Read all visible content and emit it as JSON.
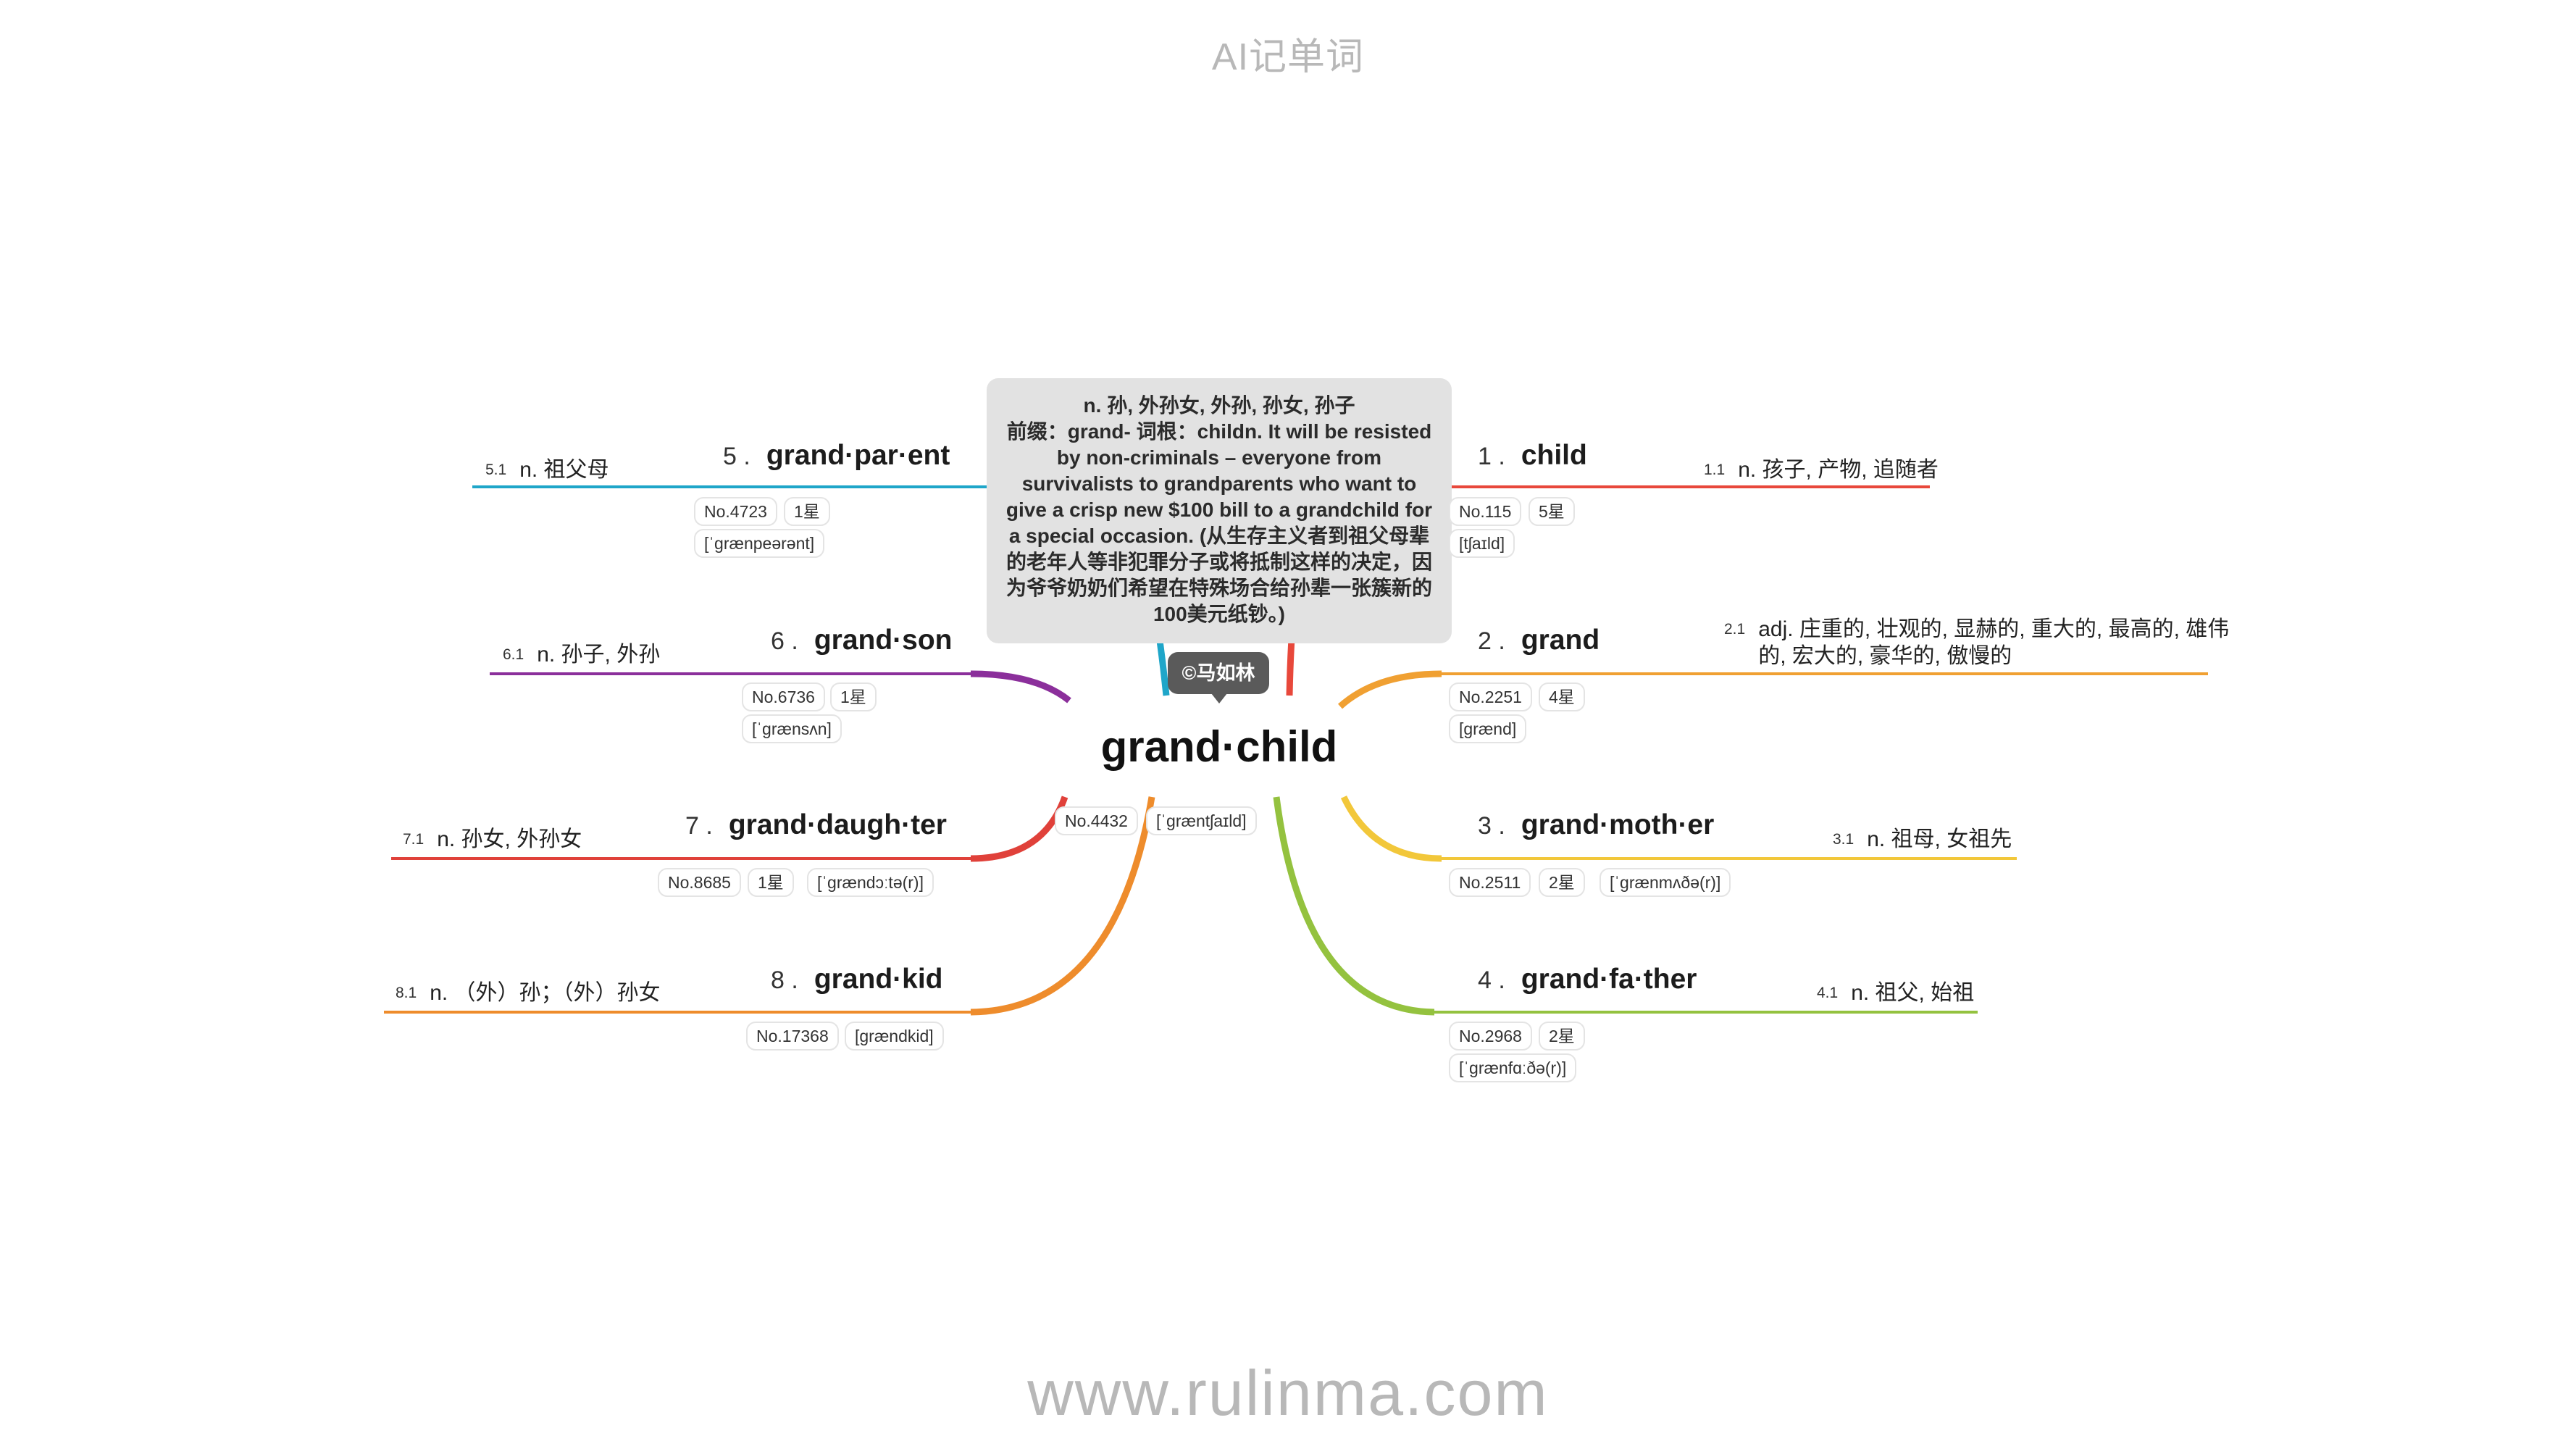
{
  "header": {
    "title": "AI记单词"
  },
  "footer": {
    "url": "www.rulinma.com"
  },
  "center": {
    "word": "grand·child",
    "rank": "No.4432",
    "phonetic": "[ˈɡræntʃaɪld]",
    "copyright": "©马如林",
    "note": "n. 孙, 外孙女, 外孙, 孙女, 孙子\n前缀：grand- 词根：childn. It will be resisted by non-criminals – everyone from survivalists to grandparents who want to give a crisp new $100 bill to a grandchild for a special occasion. (从生存主义者到祖父母辈的老年人等非犯罪分子或将抵制这样的决定，因为爷爷奶奶们希望在特殊场合给孙辈一张簇新的100美元纸钞。)"
  },
  "branches": [
    {
      "num": "1 .",
      "word": "child",
      "rank": "No.115",
      "stars": "5星",
      "phonetic": "[tʃaɪld]",
      "sub": "1.1",
      "meaning": "n. 孩子, 产物, 追随者",
      "color": "#e8483b"
    },
    {
      "num": "2 .",
      "word": "grand",
      "rank": "No.2251",
      "stars": "4星",
      "phonetic": "[ɡrænd]",
      "sub": "2.1",
      "meaning_line1": "adj. 庄重的, 壮观的, 显赫的, 重大的, 最高的, 雄伟",
      "meaning_line2": "的, 宏大的, 豪华的, 傲慢的",
      "color": "#f0a032"
    },
    {
      "num": "3 .",
      "word": "grand·moth·er",
      "rank": "No.2511",
      "stars": "2星",
      "phonetic": "[ˈɡrænmʌðə(r)]",
      "sub": "3.1",
      "meaning": "n. 祖母, 女祖先",
      "color": "#f2c73a"
    },
    {
      "num": "4 .",
      "word": "grand·fa·ther",
      "rank": "No.2968",
      "stars": "2星",
      "phonetic": "[ˈɡrænfɑːðə(r)]",
      "sub": "4.1",
      "meaning": "n. 祖父, 始祖",
      "color": "#94c23f"
    },
    {
      "num": "5 .",
      "word": "grand·par·ent",
      "rank": "No.4723",
      "stars": "1星",
      "phonetic": "[ˈɡrænpeərənt]",
      "sub": "5.1",
      "meaning": "n. 祖父母",
      "color": "#1fa6c9"
    },
    {
      "num": "6 .",
      "word": "grand·son",
      "rank": "No.6736",
      "stars": "1星",
      "phonetic": "[ˈɡrænsʌn]",
      "sub": "6.1",
      "meaning": "n. 孙子, 外孙",
      "color": "#8b2f9b"
    },
    {
      "num": "7 .",
      "word": "grand·daugh·ter",
      "rank": "No.8685",
      "stars": "1星",
      "phonetic": "[ˈɡrændɔːtə(r)]",
      "sub": "7.1",
      "meaning": "n. 孙女, 外孙女",
      "color": "#e0413a"
    },
    {
      "num": "8 .",
      "word": "grand·kid",
      "rank": "No.17368",
      "phonetic": "[ɡrændkid]",
      "sub": "8.1",
      "meaning": "n. （外）孙；（外）孙女",
      "color": "#ee8c2c"
    }
  ]
}
